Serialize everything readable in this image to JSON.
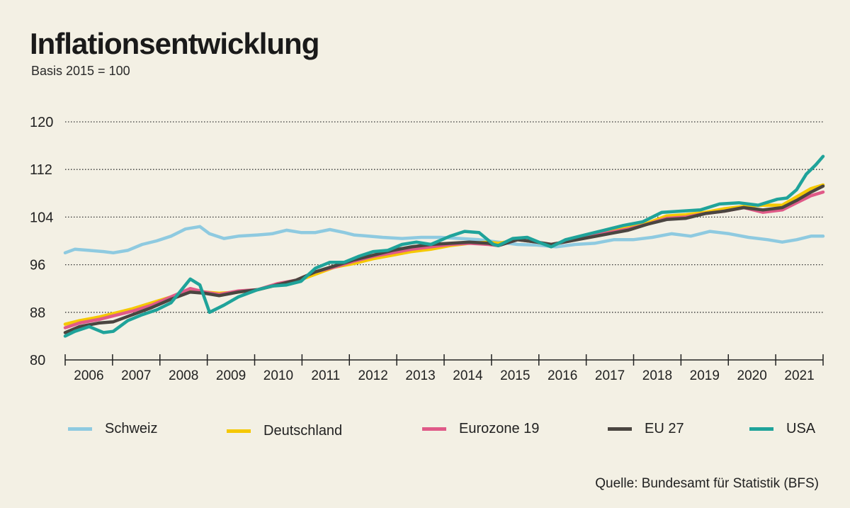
{
  "title": "Inflationsentwicklung",
  "subtitle": "Basis 2015 = 100",
  "source": "Quelle: Bundesamt für Statistik (BFS)",
  "chart_data": {
    "type": "line",
    "title": "Inflationsentwicklung",
    "subtitle": "Basis 2015 = 100",
    "xlabel": "",
    "ylabel": "",
    "ylim": [
      80,
      120
    ],
    "yticks": [
      80,
      88,
      96,
      104,
      112,
      120
    ],
    "xlim": [
      2006.0,
      2021.75
    ],
    "year_ticks": [
      "2006",
      "2007",
      "2008",
      "2009",
      "2010",
      "2011",
      "2012",
      "2013",
      "2014",
      "2015",
      "2016",
      "2017",
      "2018",
      "2019",
      "2020",
      "2021"
    ],
    "grid": "horizontal dotted",
    "legend_position": "bottom",
    "series": [
      {
        "name": "Schweiz",
        "color": "#8ecae0",
        "points": [
          [
            2006.0,
            98.0
          ],
          [
            2006.2,
            98.6
          ],
          [
            2006.5,
            98.4
          ],
          [
            2006.8,
            98.2
          ],
          [
            2007.0,
            98.0
          ],
          [
            2007.3,
            98.4
          ],
          [
            2007.6,
            99.4
          ],
          [
            2007.9,
            100.0
          ],
          [
            2008.2,
            100.8
          ],
          [
            2008.5,
            102.0
          ],
          [
            2008.8,
            102.4
          ],
          [
            2009.0,
            101.2
          ],
          [
            2009.3,
            100.4
          ],
          [
            2009.6,
            100.8
          ],
          [
            2010.0,
            101.0
          ],
          [
            2010.3,
            101.2
          ],
          [
            2010.6,
            101.8
          ],
          [
            2010.9,
            101.4
          ],
          [
            2011.2,
            101.4
          ],
          [
            2011.5,
            101.9
          ],
          [
            2011.8,
            101.4
          ],
          [
            2012.0,
            101.0
          ],
          [
            2012.3,
            100.8
          ],
          [
            2012.6,
            100.6
          ],
          [
            2013.0,
            100.4
          ],
          [
            2013.4,
            100.6
          ],
          [
            2013.8,
            100.6
          ],
          [
            2014.2,
            100.4
          ],
          [
            2014.6,
            100.2
          ],
          [
            2015.0,
            99.8
          ],
          [
            2015.4,
            99.4
          ],
          [
            2015.8,
            99.3
          ],
          [
            2016.2,
            99.0
          ],
          [
            2016.6,
            99.4
          ],
          [
            2017.0,
            99.6
          ],
          [
            2017.4,
            100.2
          ],
          [
            2017.8,
            100.2
          ],
          [
            2018.2,
            100.6
          ],
          [
            2018.6,
            101.2
          ],
          [
            2019.0,
            100.8
          ],
          [
            2019.4,
            101.6
          ],
          [
            2019.8,
            101.2
          ],
          [
            2020.2,
            100.6
          ],
          [
            2020.6,
            100.2
          ],
          [
            2020.9,
            99.8
          ],
          [
            2021.2,
            100.2
          ],
          [
            2021.5,
            100.8
          ],
          [
            2021.75,
            100.8
          ]
        ]
      },
      {
        "name": "Deutschland",
        "color": "#f5c800",
        "points": [
          [
            2006.0,
            86.0
          ],
          [
            2006.3,
            86.6
          ],
          [
            2006.7,
            87.2
          ],
          [
            2007.0,
            87.8
          ],
          [
            2007.4,
            88.6
          ],
          [
            2007.8,
            89.6
          ],
          [
            2008.2,
            90.6
          ],
          [
            2008.6,
            91.8
          ],
          [
            2008.9,
            91.4
          ],
          [
            2009.2,
            91.2
          ],
          [
            2009.6,
            91.4
          ],
          [
            2010.0,
            91.8
          ],
          [
            2010.4,
            92.6
          ],
          [
            2010.8,
            93.2
          ],
          [
            2011.2,
            94.4
          ],
          [
            2011.6,
            95.6
          ],
          [
            2012.0,
            96.2
          ],
          [
            2012.4,
            97.0
          ],
          [
            2012.8,
            97.6
          ],
          [
            2013.2,
            98.2
          ],
          [
            2013.6,
            98.6
          ],
          [
            2014.0,
            99.2
          ],
          [
            2014.4,
            99.6
          ],
          [
            2014.8,
            99.8
          ],
          [
            2015.0,
            99.6
          ],
          [
            2015.4,
            100.2
          ],
          [
            2015.8,
            99.8
          ],
          [
            2016.1,
            99.2
          ],
          [
            2016.5,
            100.2
          ],
          [
            2016.9,
            101.0
          ],
          [
            2017.3,
            101.6
          ],
          [
            2017.7,
            102.2
          ],
          [
            2018.1,
            103.0
          ],
          [
            2018.5,
            104.2
          ],
          [
            2018.9,
            104.4
          ],
          [
            2019.3,
            104.8
          ],
          [
            2019.7,
            105.4
          ],
          [
            2020.1,
            105.8
          ],
          [
            2020.5,
            106.0
          ],
          [
            2020.9,
            106.0
          ],
          [
            2021.2,
            107.4
          ],
          [
            2021.5,
            108.8
          ],
          [
            2021.75,
            109.4
          ]
        ]
      },
      {
        "name": "Eurozone 19",
        "color": "#e05a88",
        "points": [
          [
            2006.0,
            85.4
          ],
          [
            2006.3,
            86.2
          ],
          [
            2006.7,
            86.8
          ],
          [
            2007.0,
            87.4
          ],
          [
            2007.4,
            88.2
          ],
          [
            2007.8,
            89.2
          ],
          [
            2008.2,
            90.6
          ],
          [
            2008.6,
            92.0
          ],
          [
            2008.9,
            91.4
          ],
          [
            2009.2,
            91.0
          ],
          [
            2009.6,
            91.6
          ],
          [
            2010.0,
            91.8
          ],
          [
            2010.4,
            92.8
          ],
          [
            2010.8,
            93.4
          ],
          [
            2011.2,
            94.8
          ],
          [
            2011.6,
            95.6
          ],
          [
            2012.0,
            96.6
          ],
          [
            2012.4,
            97.4
          ],
          [
            2012.8,
            98.0
          ],
          [
            2013.2,
            98.6
          ],
          [
            2013.6,
            99.0
          ],
          [
            2014.0,
            99.4
          ],
          [
            2014.4,
            99.6
          ],
          [
            2014.8,
            99.4
          ],
          [
            2015.0,
            99.2
          ],
          [
            2015.4,
            100.2
          ],
          [
            2015.8,
            99.8
          ],
          [
            2016.1,
            99.4
          ],
          [
            2016.5,
            100.0
          ],
          [
            2016.9,
            100.8
          ],
          [
            2017.3,
            101.4
          ],
          [
            2017.7,
            102.0
          ],
          [
            2018.1,
            102.8
          ],
          [
            2018.5,
            103.8
          ],
          [
            2018.9,
            104.0
          ],
          [
            2019.3,
            104.6
          ],
          [
            2019.7,
            105.0
          ],
          [
            2020.1,
            105.6
          ],
          [
            2020.5,
            104.8
          ],
          [
            2020.9,
            105.2
          ],
          [
            2021.2,
            106.4
          ],
          [
            2021.5,
            107.6
          ],
          [
            2021.75,
            108.2
          ]
        ]
      },
      {
        "name": "EU 27",
        "color": "#4a4540",
        "points": [
          [
            2006.0,
            84.6
          ],
          [
            2006.3,
            85.6
          ],
          [
            2006.7,
            86.2
          ],
          [
            2007.0,
            86.4
          ],
          [
            2007.4,
            87.6
          ],
          [
            2007.8,
            88.8
          ],
          [
            2008.2,
            90.2
          ],
          [
            2008.6,
            91.4
          ],
          [
            2008.9,
            91.2
          ],
          [
            2009.2,
            90.8
          ],
          [
            2009.6,
            91.4
          ],
          [
            2010.0,
            91.8
          ],
          [
            2010.4,
            92.6
          ],
          [
            2010.8,
            93.4
          ],
          [
            2011.2,
            94.8
          ],
          [
            2011.6,
            95.8
          ],
          [
            2012.0,
            96.8
          ],
          [
            2012.4,
            97.6
          ],
          [
            2012.8,
            98.4
          ],
          [
            2013.2,
            99.0
          ],
          [
            2013.6,
            99.4
          ],
          [
            2014.0,
            99.6
          ],
          [
            2014.4,
            99.8
          ],
          [
            2014.8,
            99.6
          ],
          [
            2015.0,
            99.2
          ],
          [
            2015.4,
            100.2
          ],
          [
            2015.8,
            99.8
          ],
          [
            2016.1,
            99.4
          ],
          [
            2016.5,
            100.0
          ],
          [
            2016.9,
            100.6
          ],
          [
            2017.3,
            101.2
          ],
          [
            2017.7,
            101.8
          ],
          [
            2018.1,
            102.8
          ],
          [
            2018.5,
            103.6
          ],
          [
            2018.9,
            103.8
          ],
          [
            2019.3,
            104.6
          ],
          [
            2019.7,
            105.0
          ],
          [
            2020.1,
            105.6
          ],
          [
            2020.5,
            105.2
          ],
          [
            2020.9,
            105.6
          ],
          [
            2021.2,
            106.8
          ],
          [
            2021.5,
            108.2
          ],
          [
            2021.75,
            109.2
          ]
        ]
      },
      {
        "name": "USA",
        "color": "#1fa39a",
        "points": [
          [
            2006.0,
            84.0
          ],
          [
            2006.2,
            84.8
          ],
          [
            2006.5,
            85.6
          ],
          [
            2006.8,
            84.6
          ],
          [
            2007.0,
            84.8
          ],
          [
            2007.3,
            86.6
          ],
          [
            2007.6,
            87.6
          ],
          [
            2007.9,
            88.4
          ],
          [
            2008.2,
            89.6
          ],
          [
            2008.4,
            91.6
          ],
          [
            2008.6,
            93.6
          ],
          [
            2008.8,
            92.6
          ],
          [
            2009.0,
            88.0
          ],
          [
            2009.3,
            89.2
          ],
          [
            2009.6,
            90.6
          ],
          [
            2010.0,
            91.8
          ],
          [
            2010.3,
            92.4
          ],
          [
            2010.6,
            92.6
          ],
          [
            2010.9,
            93.2
          ],
          [
            2011.2,
            95.4
          ],
          [
            2011.5,
            96.4
          ],
          [
            2011.8,
            96.4
          ],
          [
            2012.1,
            97.4
          ],
          [
            2012.4,
            98.2
          ],
          [
            2012.7,
            98.4
          ],
          [
            2013.0,
            99.4
          ],
          [
            2013.3,
            99.8
          ],
          [
            2013.6,
            99.4
          ],
          [
            2014.0,
            100.8
          ],
          [
            2014.3,
            101.6
          ],
          [
            2014.6,
            101.4
          ],
          [
            2014.9,
            99.4
          ],
          [
            2015.0,
            99.2
          ],
          [
            2015.3,
            100.4
          ],
          [
            2015.6,
            100.6
          ],
          [
            2015.9,
            99.6
          ],
          [
            2016.1,
            99.0
          ],
          [
            2016.4,
            100.2
          ],
          [
            2016.8,
            101.0
          ],
          [
            2017.2,
            101.8
          ],
          [
            2017.6,
            102.6
          ],
          [
            2018.0,
            103.2
          ],
          [
            2018.4,
            104.8
          ],
          [
            2018.8,
            105.0
          ],
          [
            2019.2,
            105.2
          ],
          [
            2019.6,
            106.2
          ],
          [
            2020.0,
            106.4
          ],
          [
            2020.4,
            106.0
          ],
          [
            2020.8,
            107.0
          ],
          [
            2021.0,
            107.2
          ],
          [
            2021.2,
            108.6
          ],
          [
            2021.4,
            111.2
          ],
          [
            2021.6,
            112.8
          ],
          [
            2021.75,
            114.2
          ]
        ]
      }
    ]
  }
}
